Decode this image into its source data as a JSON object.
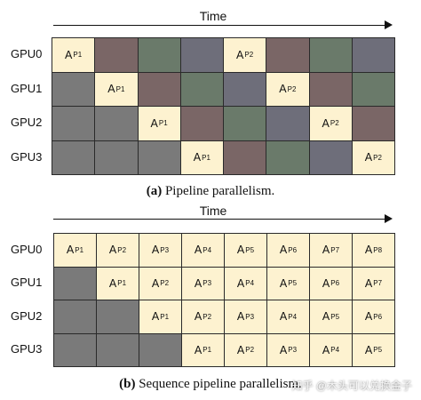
{
  "colors": {
    "active": "#fdf2d0",
    "idle": "#7a7a7a",
    "brown": "#7a6666",
    "green": "#6a7a6a",
    "slate": "#6e6e7a"
  },
  "panel_a": {
    "time_label": "Time",
    "gpus": [
      "GPU0",
      "GPU1",
      "GPU2",
      "GPU3"
    ],
    "rows": [
      [
        {
          "kind": "active",
          "main": "A",
          "sub": "P1"
        },
        {
          "kind": "brown"
        },
        {
          "kind": "green"
        },
        {
          "kind": "slate"
        },
        {
          "kind": "active",
          "main": "A",
          "sub": "P2"
        },
        {
          "kind": "brown"
        },
        {
          "kind": "green"
        },
        {
          "kind": "slate"
        }
      ],
      [
        {
          "kind": "idle"
        },
        {
          "kind": "active",
          "main": "A",
          "sub": "P1"
        },
        {
          "kind": "brown"
        },
        {
          "kind": "green"
        },
        {
          "kind": "slate"
        },
        {
          "kind": "active",
          "main": "A",
          "sub": "P2"
        },
        {
          "kind": "brown"
        },
        {
          "kind": "green"
        }
      ],
      [
        {
          "kind": "idle"
        },
        {
          "kind": "idle"
        },
        {
          "kind": "active",
          "main": "A",
          "sub": "P1"
        },
        {
          "kind": "brown"
        },
        {
          "kind": "green"
        },
        {
          "kind": "slate"
        },
        {
          "kind": "active",
          "main": "A",
          "sub": "P2"
        },
        {
          "kind": "brown"
        }
      ],
      [
        {
          "kind": "idle"
        },
        {
          "kind": "idle"
        },
        {
          "kind": "idle"
        },
        {
          "kind": "active",
          "main": "A",
          "sub": "P1"
        },
        {
          "kind": "brown"
        },
        {
          "kind": "green"
        },
        {
          "kind": "slate"
        },
        {
          "kind": "active",
          "main": "A",
          "sub": "P2"
        }
      ]
    ],
    "caption_bold": "(a)",
    "caption_text": " Pipeline parallelism."
  },
  "panel_b": {
    "time_label": "Time",
    "gpus": [
      "GPU0",
      "GPU1",
      "GPU2",
      "GPU3"
    ],
    "rows": [
      [
        {
          "kind": "active",
          "main": "A",
          "sub": "P1"
        },
        {
          "kind": "active",
          "main": "A",
          "sub": "P2"
        },
        {
          "kind": "active",
          "main": "A",
          "sub": "P3"
        },
        {
          "kind": "active",
          "main": "A",
          "sub": "P4"
        },
        {
          "kind": "active",
          "main": "A",
          "sub": "P5"
        },
        {
          "kind": "active",
          "main": "A",
          "sub": "P6"
        },
        {
          "kind": "active",
          "main": "A",
          "sub": "P7"
        },
        {
          "kind": "active",
          "main": "A",
          "sub": "P8"
        }
      ],
      [
        {
          "kind": "idle"
        },
        {
          "kind": "active",
          "main": "A",
          "sub": "P1"
        },
        {
          "kind": "active",
          "main": "A",
          "sub": "P2"
        },
        {
          "kind": "active",
          "main": "A",
          "sub": "P3"
        },
        {
          "kind": "active",
          "main": "A",
          "sub": "P4"
        },
        {
          "kind": "active",
          "main": "A",
          "sub": "P5"
        },
        {
          "kind": "active",
          "main": "A",
          "sub": "P6"
        },
        {
          "kind": "active",
          "main": "A",
          "sub": "P7"
        }
      ],
      [
        {
          "kind": "idle"
        },
        {
          "kind": "idle"
        },
        {
          "kind": "active",
          "main": "A",
          "sub": "P1"
        },
        {
          "kind": "active",
          "main": "A",
          "sub": "P2"
        },
        {
          "kind": "active",
          "main": "A",
          "sub": "P3"
        },
        {
          "kind": "active",
          "main": "A",
          "sub": "P4"
        },
        {
          "kind": "active",
          "main": "A",
          "sub": "P5"
        },
        {
          "kind": "active",
          "main": "A",
          "sub": "P6"
        }
      ],
      [
        {
          "kind": "idle"
        },
        {
          "kind": "idle"
        },
        {
          "kind": "idle"
        },
        {
          "kind": "active",
          "main": "A",
          "sub": "P1"
        },
        {
          "kind": "active",
          "main": "A",
          "sub": "P2"
        },
        {
          "kind": "active",
          "main": "A",
          "sub": "P3"
        },
        {
          "kind": "active",
          "main": "A",
          "sub": "P4"
        },
        {
          "kind": "active",
          "main": "A",
          "sub": "P5"
        }
      ]
    ],
    "caption_bold": "(b)",
    "caption_text": " Sequence pipeline parallelism."
  },
  "watermark": "知乎 @木头可以兑换金子"
}
